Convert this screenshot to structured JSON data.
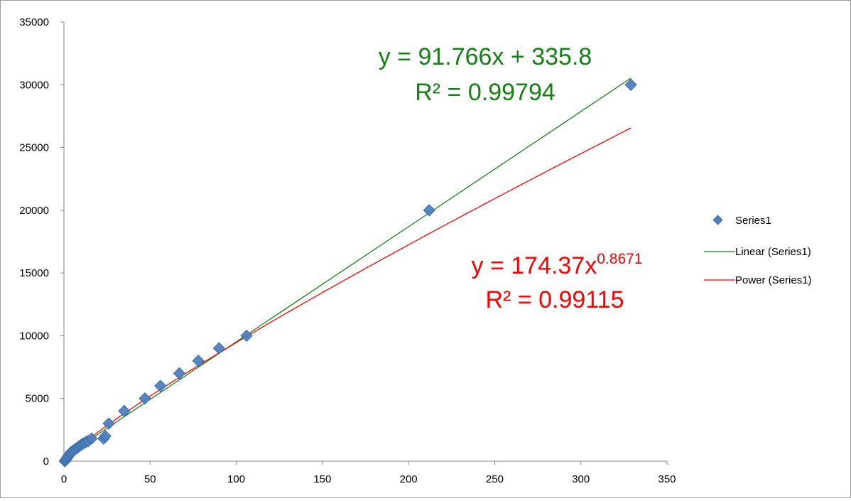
{
  "chart_data": {
    "type": "scatter",
    "title": "",
    "xlabel": "",
    "ylabel": "",
    "xlim": [
      0,
      350
    ],
    "ylim": [
      0,
      35000
    ],
    "x_ticks": [
      0,
      50,
      100,
      150,
      200,
      250,
      300,
      350
    ],
    "y_ticks": [
      0,
      5000,
      10000,
      15000,
      20000,
      25000,
      30000,
      35000
    ],
    "grid": false,
    "legend_position": "right",
    "series": [
      {
        "name": "Series1",
        "marker": "diamond",
        "color": "#4f81bd",
        "points": [
          [
            0.5,
            0
          ],
          [
            1,
            100
          ],
          [
            1.5,
            200
          ],
          [
            2,
            300
          ],
          [
            2.5,
            400
          ],
          [
            3,
            500
          ],
          [
            3.5,
            600
          ],
          [
            4,
            700
          ],
          [
            5,
            800
          ],
          [
            6,
            900
          ],
          [
            7,
            1000
          ],
          [
            8,
            1100
          ],
          [
            9,
            1200
          ],
          [
            10,
            1300
          ],
          [
            11,
            1400
          ],
          [
            12.5,
            1500
          ],
          [
            14,
            1600
          ],
          [
            16,
            1800
          ],
          [
            23,
            1800
          ],
          [
            24,
            2000
          ],
          [
            26,
            3000
          ],
          [
            35,
            4000
          ],
          [
            47,
            5000
          ],
          [
            56,
            6000
          ],
          [
            67,
            7000
          ],
          [
            78,
            8000
          ],
          [
            90,
            9000
          ],
          [
            106,
            10000
          ],
          [
            212,
            20000
          ],
          [
            329,
            30000
          ]
        ]
      },
      {
        "name": "Linear (Series1)",
        "color": "#168016",
        "kind": "linear",
        "slope": 91.766,
        "intercept": 335.8,
        "x_range": [
          0,
          329
        ]
      },
      {
        "name": "Power (Series1)",
        "color": "#ff0000",
        "kind": "power",
        "coef": 174.37,
        "exponent": 0.8671,
        "x_range": [
          0.5,
          329
        ]
      }
    ],
    "annotations": {
      "linear": {
        "line1": "y = 91.766x + 335.8",
        "line2": "R² = 0.99794",
        "color": "#168016"
      },
      "power": {
        "base": "y = 174.37x",
        "sup": "0.8671",
        "line2": "R² = 0.99115",
        "color": "#ff0000"
      }
    }
  }
}
